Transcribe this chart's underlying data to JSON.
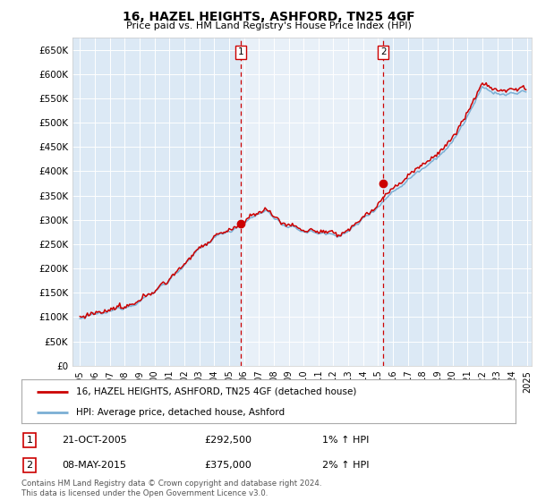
{
  "title": "16, HAZEL HEIGHTS, ASHFORD, TN25 4GF",
  "subtitle": "Price paid vs. HM Land Registry's House Price Index (HPI)",
  "ylabel_ticks": [
    "£0",
    "£50K",
    "£100K",
    "£150K",
    "£200K",
    "£250K",
    "£300K",
    "£350K",
    "£400K",
    "£450K",
    "£500K",
    "£550K",
    "£600K",
    "£650K"
  ],
  "ytick_values": [
    0,
    50000,
    100000,
    150000,
    200000,
    250000,
    300000,
    350000,
    400000,
    450000,
    500000,
    550000,
    600000,
    650000
  ],
  "ylim": [
    0,
    675000
  ],
  "xlim_start": 1994.5,
  "xlim_end": 2025.3,
  "background_color": "#dce9f5",
  "grid_color": "#ffffff",
  "legend_label_red": "16, HAZEL HEIGHTS, ASHFORD, TN25 4GF (detached house)",
  "legend_label_blue": "HPI: Average price, detached house, Ashford",
  "marker1_date": 2005.8,
  "marker1_price": 292500,
  "marker1_label": "1",
  "marker1_text": "21-OCT-2005",
  "marker1_amount": "£292,500",
  "marker1_hpi": "1% ↑ HPI",
  "marker2_date": 2015.35,
  "marker2_price": 375000,
  "marker2_label": "2",
  "marker2_text": "08-MAY-2015",
  "marker2_amount": "£375,000",
  "marker2_hpi": "2% ↑ HPI",
  "copyright_text": "Contains HM Land Registry data © Crown copyright and database right 2024.\nThis data is licensed under the Open Government Licence v3.0.",
  "red_color": "#cc0000",
  "blue_color": "#7bafd4",
  "marker_box_color": "#cc0000",
  "highlight_bg": "#e8f0f8"
}
